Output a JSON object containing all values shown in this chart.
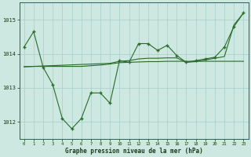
{
  "line1_x": [
    0,
    1,
    2,
    3,
    4,
    5,
    6,
    7,
    8,
    9,
    10,
    11,
    12,
    13,
    14,
    15,
    16,
    17,
    18,
    19,
    20,
    21,
    22,
    23
  ],
  "line1_y": [
    1014.2,
    1014.65,
    1013.6,
    1013.1,
    1012.1,
    1011.8,
    1012.1,
    1012.85,
    1012.85,
    1012.55,
    1013.8,
    1013.75,
    1014.3,
    1014.3,
    1014.1,
    1014.25,
    1013.95,
    1013.75,
    1013.8,
    1013.85,
    1013.9,
    1014.2,
    1014.8,
    1015.2
  ],
  "line2_x": [
    0,
    1,
    2,
    3,
    4,
    5,
    6,
    7,
    8,
    9,
    10,
    11,
    12,
    13,
    14,
    15,
    16,
    17,
    18,
    19,
    20,
    21,
    22,
    23
  ],
  "line2_y": [
    1013.62,
    1013.63,
    1013.63,
    1013.63,
    1013.63,
    1013.63,
    1013.63,
    1013.65,
    1013.67,
    1013.7,
    1013.74,
    1013.75,
    1013.76,
    1013.77,
    1013.77,
    1013.78,
    1013.78,
    1013.78,
    1013.78,
    1013.78,
    1013.78,
    1013.78,
    1013.78,
    1013.78
  ],
  "line3_x": [
    0,
    9,
    10,
    11,
    12,
    13,
    14,
    15,
    16,
    17,
    18,
    19,
    20,
    21,
    22,
    23
  ],
  "line3_y": [
    1013.62,
    1013.72,
    1013.78,
    1013.8,
    1013.85,
    1013.87,
    1013.87,
    1013.88,
    1013.88,
    1013.75,
    1013.77,
    1013.82,
    1013.87,
    1013.92,
    1014.85,
    1015.2
  ],
  "line_color": "#2a6b2a",
  "marker_color": "#2a6b2a",
  "bg_color": "#cce8e0",
  "grid_color": "#a8cec8",
  "xlabel": "Graphe pression niveau de la mer (hPa)",
  "ylim": [
    1011.5,
    1015.5
  ],
  "xlim": [
    -0.5,
    23.5
  ],
  "yticks": [
    1012,
    1013,
    1014,
    1015
  ],
  "xticks": [
    0,
    1,
    2,
    3,
    4,
    5,
    6,
    7,
    8,
    9,
    10,
    11,
    12,
    13,
    14,
    15,
    16,
    17,
    18,
    19,
    20,
    21,
    22,
    23
  ],
  "fig_width": 3.2,
  "fig_height": 2.0,
  "dpi": 100
}
